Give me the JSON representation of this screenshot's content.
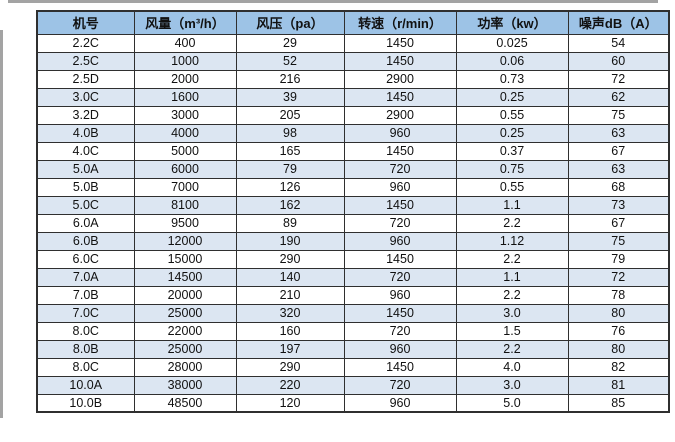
{
  "colors": {
    "header_bg": "#9DC3E6",
    "row_alt_bg": "#DCE6F2",
    "border": "#2F2F2F",
    "edge_strip": "#A3A3A3"
  },
  "chart_data": {
    "type": "table",
    "title": "",
    "columns": [
      "机号",
      "风量（m³/h）",
      "风压（pa）",
      "转速（r/min）",
      "功率（kw）",
      "噪声dB（A）"
    ],
    "rows": [
      [
        "2.2C",
        "400",
        "29",
        "1450",
        "0.025",
        "54"
      ],
      [
        "2.5C",
        "1000",
        "52",
        "1450",
        "0.06",
        "60"
      ],
      [
        "2.5D",
        "2000",
        "216",
        "2900",
        "0.73",
        "72"
      ],
      [
        "3.0C",
        "1600",
        "39",
        "1450",
        "0.25",
        "62"
      ],
      [
        "3.2D",
        "3000",
        "205",
        "2900",
        "0.55",
        "75"
      ],
      [
        "4.0B",
        "4000",
        "98",
        "960",
        "0.25",
        "63"
      ],
      [
        "4.0C",
        "5000",
        "165",
        "1450",
        "0.37",
        "67"
      ],
      [
        "5.0A",
        "6000",
        "79",
        "720",
        "0.75",
        "63"
      ],
      [
        "5.0B",
        "7000",
        "126",
        "960",
        "0.55",
        "68"
      ],
      [
        "5.0C",
        "8100",
        "162",
        "1450",
        "1.1",
        "73"
      ],
      [
        "6.0A",
        "9500",
        "89",
        "720",
        "2.2",
        "67"
      ],
      [
        "6.0B",
        "12000",
        "190",
        "960",
        "1.12",
        "75"
      ],
      [
        "6.0C",
        "15000",
        "290",
        "1450",
        "2.2",
        "79"
      ],
      [
        "7.0A",
        "14500",
        "140",
        "720",
        "1.1",
        "72"
      ],
      [
        "7.0B",
        "20000",
        "210",
        "960",
        "2.2",
        "78"
      ],
      [
        "7.0C",
        "25000",
        "320",
        "1450",
        "3.0",
        "80"
      ],
      [
        "8.0C",
        "22000",
        "160",
        "720",
        "1.5",
        "76"
      ],
      [
        "8.0B",
        "25000",
        "197",
        "960",
        "2.2",
        "80"
      ],
      [
        "8.0C",
        "28000",
        "290",
        "1450",
        "4.0",
        "82"
      ],
      [
        "10.0A",
        "38000",
        "220",
        "720",
        "3.0",
        "81"
      ],
      [
        "10.0B",
        "48500",
        "120",
        "960",
        "5.0",
        "85"
      ]
    ]
  }
}
